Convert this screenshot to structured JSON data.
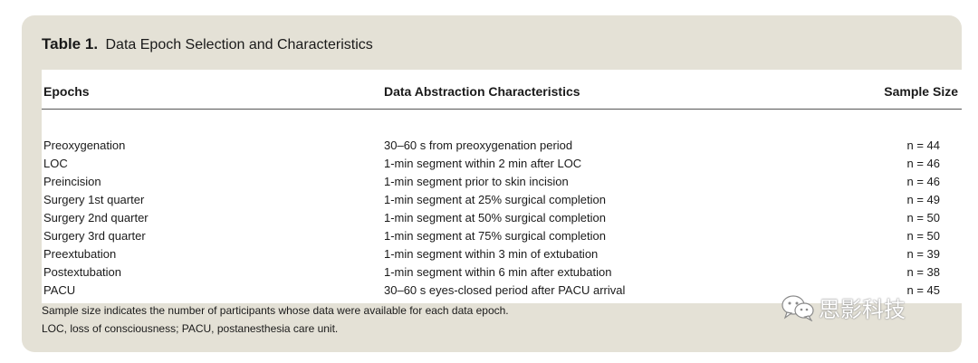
{
  "table": {
    "title_number": "Table 1.",
    "title_text": "Data Epoch Selection and Characteristics",
    "columns": [
      "Epochs",
      "Data Abstraction Characteristics",
      "Sample Size"
    ],
    "rows": [
      [
        "Preoxygenation",
        "30–60 s from preoxygenation period",
        "n = 44"
      ],
      [
        "LOC",
        "1-min segment within 2 min after LOC",
        "n = 46"
      ],
      [
        "Preincision",
        "1-min segment prior to skin incision",
        "n = 46"
      ],
      [
        "Surgery 1st quarter",
        "1-min segment at 25% surgical completion",
        "n = 49"
      ],
      [
        "Surgery 2nd quarter",
        "1-min segment at 50% surgical completion",
        "n = 50"
      ],
      [
        "Surgery 3rd quarter",
        "1-min segment at 75% surgical completion",
        "n = 50"
      ],
      [
        "Preextubation",
        "1-min segment within 3 min of extubation",
        "n = 39"
      ],
      [
        "Postextubation",
        "1-min segment within 6 min after extubation",
        "n = 38"
      ],
      [
        "PACU",
        "30–60 s eyes-closed period after PACU arrival",
        "n = 45"
      ]
    ],
    "notes": [
      "Sample size indicates the number of participants whose data were available for each data epoch.",
      "LOC, loss of consciousness; PACU, postanesthesia care unit."
    ]
  },
  "watermark": {
    "icon": "wechat-icon",
    "text": "思影科技"
  }
}
